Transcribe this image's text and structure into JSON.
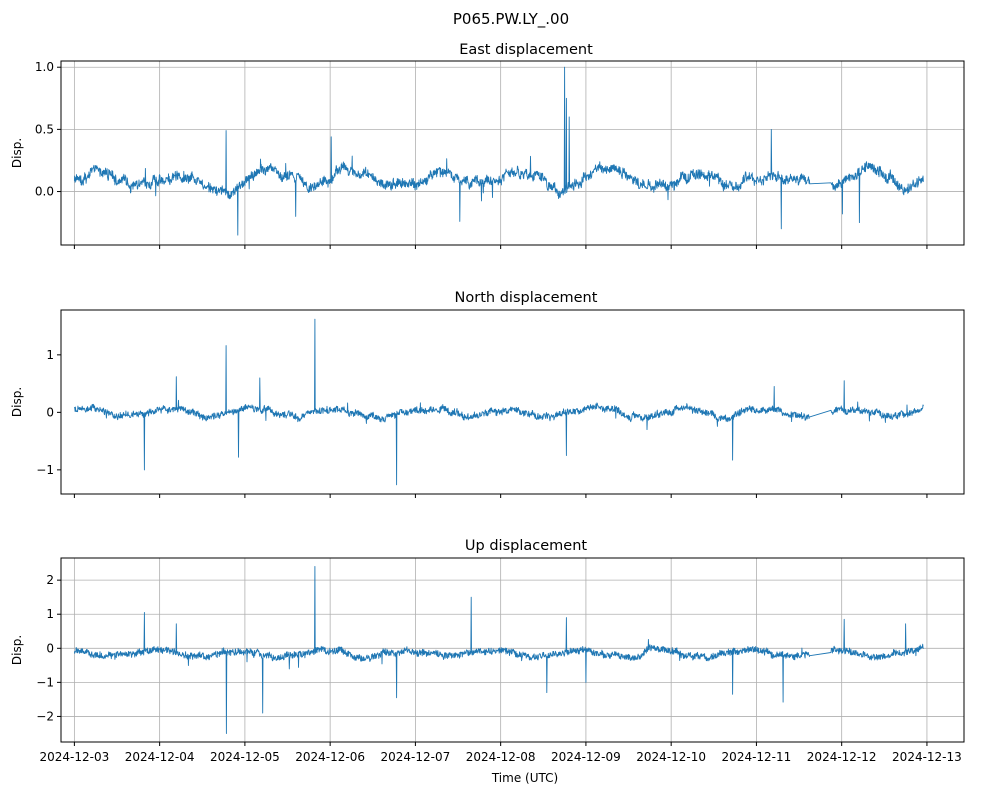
{
  "figure": {
    "suptitle": "P065.PW.LY_.00",
    "xlabel": "Time (UTC)"
  },
  "chart_data": [
    {
      "type": "line",
      "title": "East displacement",
      "ylabel": "Disp.",
      "xlim": [
        "2024-12-02T20:14",
        "2024-12-13T10:26"
      ],
      "ylim": [
        -0.43,
        1.05
      ],
      "yticks": [
        0.0,
        0.5,
        1.0
      ],
      "ytick_labels": [
        "0.0",
        "0.5",
        "1.0"
      ],
      "grid": true,
      "color": "#1f77b4",
      "baseline": 0.1,
      "noise": 0.035,
      "wander": 0.06,
      "gaps": [
        [
          "2024-12-11T15:00",
          "2024-12-11T21:00"
        ]
      ],
      "spikes": [
        [
          "2024-12-04T18:40",
          0.49
        ],
        [
          "2024-12-04T22:00",
          -0.35
        ],
        [
          "2024-12-05T14:20",
          -0.2
        ],
        [
          "2024-12-06T00:20",
          0.44
        ],
        [
          "2024-12-07T12:30",
          -0.24
        ],
        [
          "2024-12-08T18:00",
          1.0
        ],
        [
          "2024-12-08T18:30",
          0.75
        ],
        [
          "2024-12-08T19:20",
          0.6
        ],
        [
          "2024-12-11T07:00",
          -0.3
        ],
        [
          "2024-12-12T00:10",
          -0.18
        ],
        [
          "2024-12-12T05:00",
          -0.25
        ],
        [
          "2024-12-11T04:10",
          0.5
        ]
      ]
    },
    {
      "type": "line",
      "title": "North displacement",
      "ylabel": "Disp.",
      "xlim": [
        "2024-12-02T20:14",
        "2024-12-13T10:26"
      ],
      "ylim": [
        -1.42,
        1.78
      ],
      "yticks": [
        -1,
        0,
        1
      ],
      "ytick_labels": [
        "−1",
        "0",
        "1"
      ],
      "grid": false,
      "color": "#1f77b4",
      "baseline": 0.0,
      "noise": 0.05,
      "wander": 0.07,
      "gaps": [
        [
          "2024-12-11T15:00",
          "2024-12-11T21:00"
        ]
      ],
      "spikes": [
        [
          "2024-12-03T19:40",
          -1.0
        ],
        [
          "2024-12-04T04:40",
          0.62
        ],
        [
          "2024-12-04T18:40",
          1.16
        ],
        [
          "2024-12-04T22:10",
          -0.78
        ],
        [
          "2024-12-05T19:40",
          1.62
        ],
        [
          "2024-12-06T18:40",
          -1.26
        ],
        [
          "2024-12-08T18:30",
          -0.75
        ],
        [
          "2024-12-10T17:20",
          -0.83
        ],
        [
          "2024-12-12T00:40",
          0.55
        ],
        [
          "2024-12-11T05:00",
          0.45
        ],
        [
          "2024-12-05T04:10",
          0.6
        ]
      ]
    },
    {
      "type": "line",
      "title": "Up displacement",
      "ylabel": "Disp.",
      "xlim": [
        "2024-12-02T20:14",
        "2024-12-13T10:26"
      ],
      "ylim": [
        -2.75,
        2.65
      ],
      "yticks": [
        -2,
        -1,
        0,
        1,
        2
      ],
      "ytick_labels": [
        "−2",
        "−1",
        "0",
        "1",
        "2"
      ],
      "xticks": [
        "2024-12-03",
        "2024-12-04",
        "2024-12-05",
        "2024-12-06",
        "2024-12-07",
        "2024-12-08",
        "2024-12-09",
        "2024-12-10",
        "2024-12-11",
        "2024-12-12",
        "2024-12-13"
      ],
      "grid": true,
      "color": "#1f77b4",
      "baseline": -0.15,
      "noise": 0.09,
      "wander": 0.09,
      "gaps": [
        [
          "2024-12-11T15:00",
          "2024-12-11T21:00"
        ]
      ],
      "spikes": [
        [
          "2024-12-03T19:40",
          1.05
        ],
        [
          "2024-12-04T04:40",
          0.72
        ],
        [
          "2024-12-04T18:50",
          -2.5
        ],
        [
          "2024-12-05T05:00",
          -1.9
        ],
        [
          "2024-12-05T19:40",
          2.4
        ],
        [
          "2024-12-06T18:40",
          -1.45
        ],
        [
          "2024-12-07T15:40",
          1.5
        ],
        [
          "2024-12-08T13:00",
          -1.3
        ],
        [
          "2024-12-08T18:30",
          0.9
        ],
        [
          "2024-12-09T00:00",
          -1.0
        ],
        [
          "2024-12-10T17:20",
          -1.35
        ],
        [
          "2024-12-11T07:30",
          -1.58
        ],
        [
          "2024-12-12T00:40",
          0.85
        ],
        [
          "2024-12-12T18:00",
          0.72
        ]
      ]
    }
  ]
}
